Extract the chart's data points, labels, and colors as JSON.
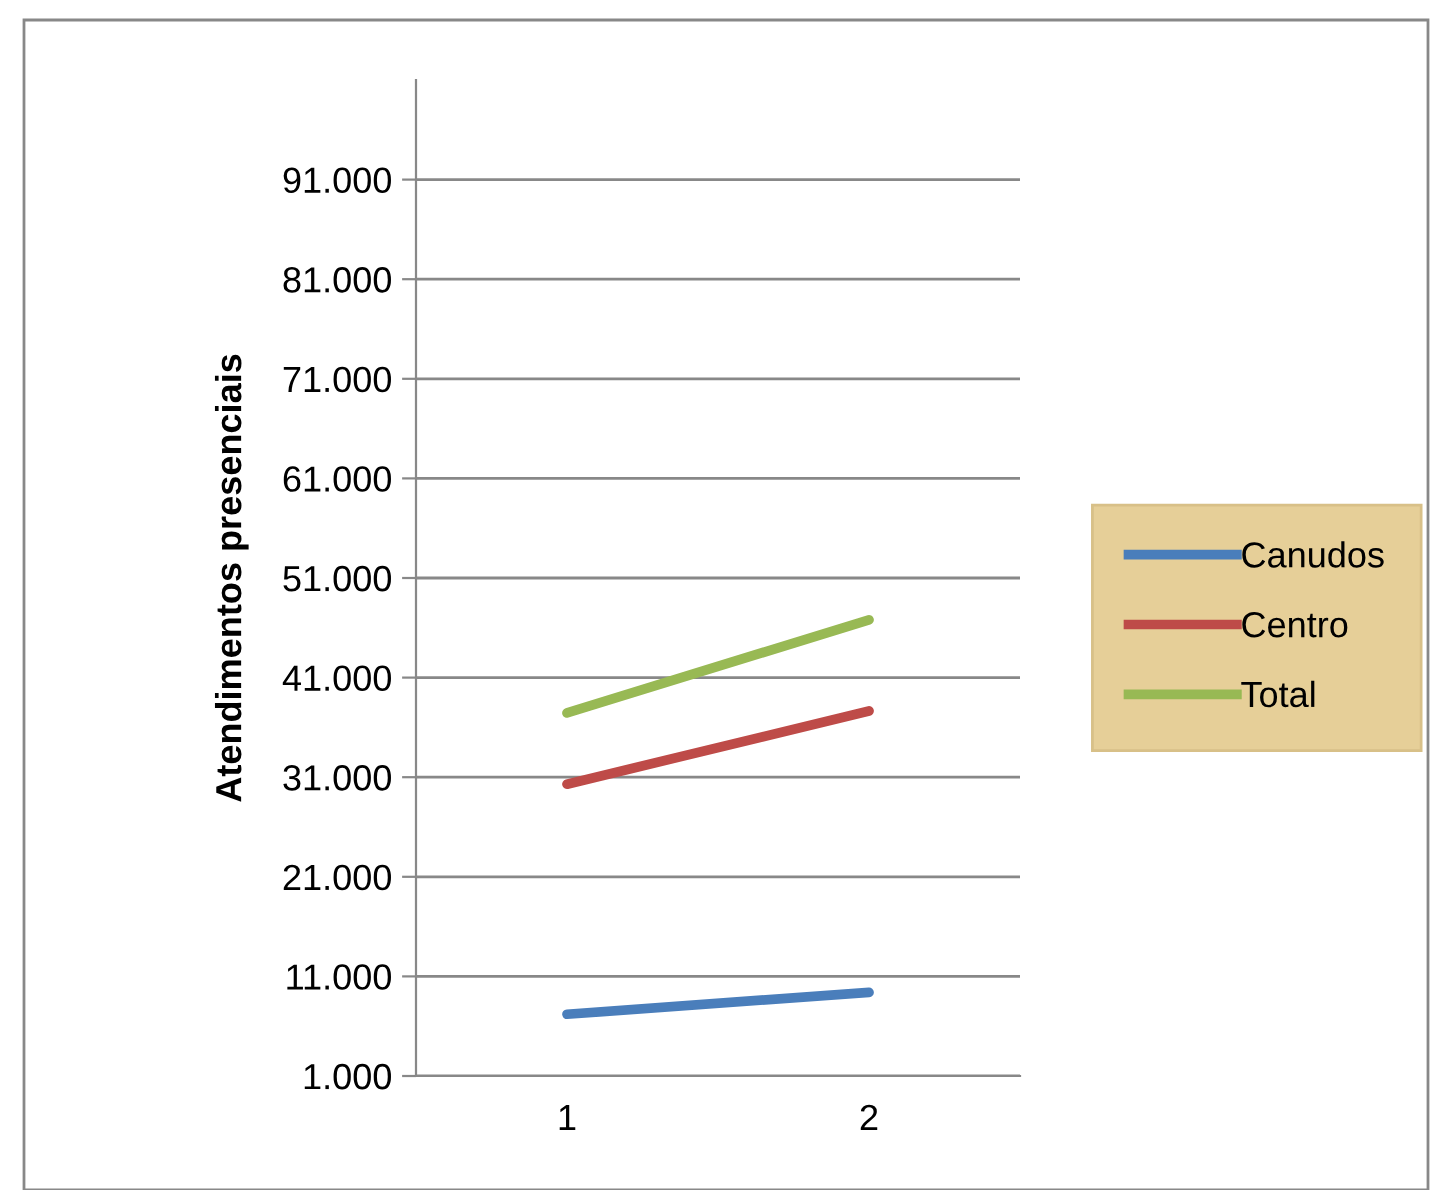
{
  "chart_data": {
    "type": "line",
    "ylabel": "Atendimentos presenciais",
    "categories": [
      "1",
      "2"
    ],
    "series": [
      {
        "name": "Canudos",
        "color": "#4a7ebb",
        "values": [
          7200,
          9400
        ]
      },
      {
        "name": "Centro",
        "color": "#be4b48",
        "values": [
          30300,
          37650
        ]
      },
      {
        "name": "Total",
        "color": "#98b954",
        "values": [
          37450,
          46800
        ]
      }
    ],
    "ylim": [
      1000,
      101000
    ],
    "yticks": [
      {
        "value": 1000,
        "label": "1.000"
      },
      {
        "value": 11000,
        "label": "11.000"
      },
      {
        "value": 21000,
        "label": "21.000"
      },
      {
        "value": 31000,
        "label": "31.000"
      },
      {
        "value": 41000,
        "label": "41.000"
      },
      {
        "value": 51000,
        "label": "51.000"
      },
      {
        "value": 61000,
        "label": "61.000"
      },
      {
        "value": 71000,
        "label": "71.000"
      },
      {
        "value": 81000,
        "label": "81.000"
      },
      {
        "value": 91000,
        "label": "91.000"
      }
    ],
    "grid": "y",
    "legend": "right",
    "marker": "none",
    "line_style": "solid"
  }
}
